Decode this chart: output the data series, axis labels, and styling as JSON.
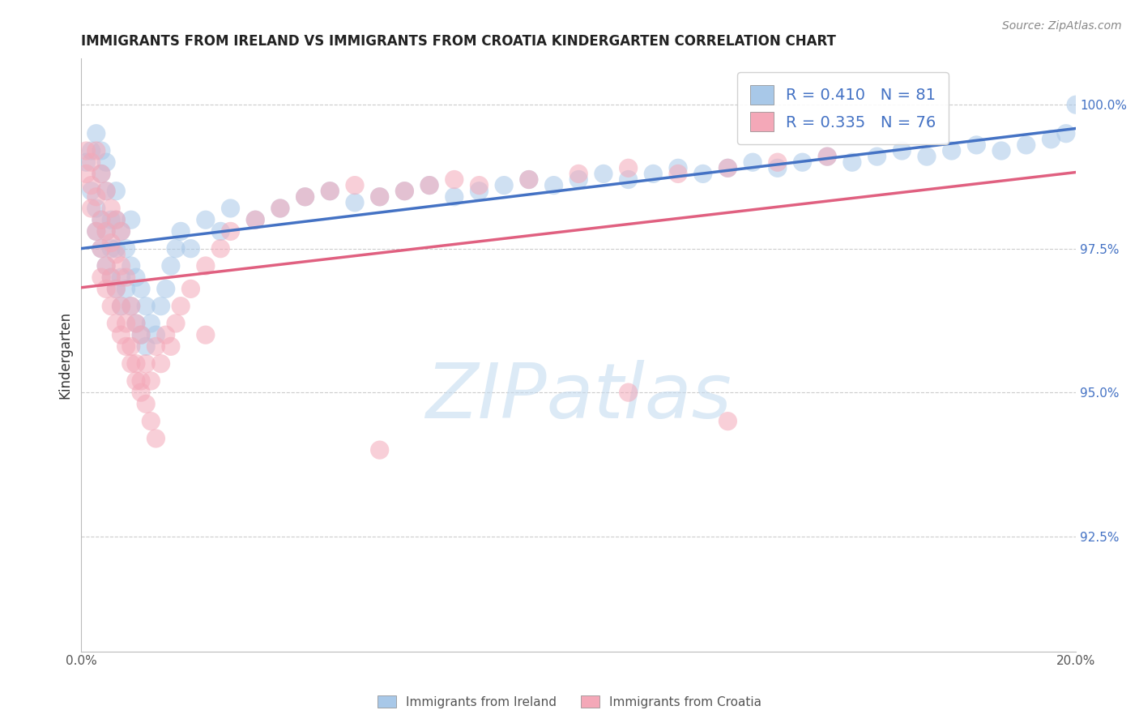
{
  "title": "IMMIGRANTS FROM IRELAND VS IMMIGRANTS FROM CROATIA KINDERGARTEN CORRELATION CHART",
  "source": "Source: ZipAtlas.com",
  "xlabel": "",
  "ylabel": "Kindergarten",
  "xlim": [
    0.0,
    0.2
  ],
  "ylim": [
    0.905,
    1.008
  ],
  "xtick_positions": [
    0.0,
    0.04,
    0.08,
    0.12,
    0.16,
    0.2
  ],
  "xtick_labels": [
    "0.0%",
    "",
    "",
    "",
    "",
    "20.0%"
  ],
  "ytick_positions": [
    0.925,
    0.95,
    0.975,
    1.0
  ],
  "ytick_labels": [
    "92.5%",
    "95.0%",
    "97.5%",
    "100.0%"
  ],
  "ireland_color": "#A8C8E8",
  "croatia_color": "#F4A8B8",
  "ireland_line_color": "#4472C4",
  "croatia_line_color": "#E06080",
  "R_ireland": 0.41,
  "N_ireland": 81,
  "R_croatia": 0.335,
  "N_croatia": 76,
  "watermark": "ZIPatlas",
  "legend_label_ireland": "Immigrants from Ireland",
  "legend_label_croatia": "Immigrants from Croatia",
  "ireland_x": [
    0.001,
    0.002,
    0.002,
    0.003,
    0.003,
    0.003,
    0.004,
    0.004,
    0.004,
    0.004,
    0.005,
    0.005,
    0.005,
    0.005,
    0.006,
    0.006,
    0.006,
    0.007,
    0.007,
    0.007,
    0.007,
    0.008,
    0.008,
    0.008,
    0.009,
    0.009,
    0.01,
    0.01,
    0.01,
    0.011,
    0.011,
    0.012,
    0.012,
    0.013,
    0.013,
    0.014,
    0.015,
    0.016,
    0.017,
    0.018,
    0.019,
    0.02,
    0.022,
    0.025,
    0.028,
    0.03,
    0.035,
    0.04,
    0.045,
    0.05,
    0.055,
    0.06,
    0.065,
    0.07,
    0.075,
    0.08,
    0.085,
    0.09,
    0.095,
    0.1,
    0.105,
    0.11,
    0.115,
    0.12,
    0.125,
    0.13,
    0.135,
    0.14,
    0.145,
    0.15,
    0.155,
    0.16,
    0.165,
    0.17,
    0.175,
    0.18,
    0.185,
    0.19,
    0.195,
    0.198,
    0.2
  ],
  "ireland_y": [
    0.99,
    0.985,
    0.992,
    0.978,
    0.982,
    0.995,
    0.975,
    0.98,
    0.988,
    0.992,
    0.972,
    0.978,
    0.985,
    0.99,
    0.97,
    0.975,
    0.98,
    0.968,
    0.975,
    0.98,
    0.985,
    0.965,
    0.97,
    0.978,
    0.968,
    0.975,
    0.965,
    0.972,
    0.98,
    0.962,
    0.97,
    0.96,
    0.968,
    0.958,
    0.965,
    0.962,
    0.96,
    0.965,
    0.968,
    0.972,
    0.975,
    0.978,
    0.975,
    0.98,
    0.978,
    0.982,
    0.98,
    0.982,
    0.984,
    0.985,
    0.983,
    0.984,
    0.985,
    0.986,
    0.984,
    0.985,
    0.986,
    0.987,
    0.986,
    0.987,
    0.988,
    0.987,
    0.988,
    0.989,
    0.988,
    0.989,
    0.99,
    0.989,
    0.99,
    0.991,
    0.99,
    0.991,
    0.992,
    0.991,
    0.992,
    0.993,
    0.992,
    0.993,
    0.994,
    0.995,
    1.0
  ],
  "croatia_x": [
    0.001,
    0.001,
    0.002,
    0.002,
    0.002,
    0.003,
    0.003,
    0.003,
    0.004,
    0.004,
    0.004,
    0.005,
    0.005,
    0.005,
    0.006,
    0.006,
    0.006,
    0.007,
    0.007,
    0.007,
    0.008,
    0.008,
    0.008,
    0.009,
    0.009,
    0.01,
    0.01,
    0.011,
    0.011,
    0.012,
    0.012,
    0.013,
    0.014,
    0.015,
    0.016,
    0.017,
    0.018,
    0.019,
    0.02,
    0.022,
    0.025,
    0.028,
    0.03,
    0.035,
    0.04,
    0.045,
    0.05,
    0.055,
    0.06,
    0.065,
    0.07,
    0.075,
    0.08,
    0.09,
    0.1,
    0.11,
    0.12,
    0.13,
    0.14,
    0.15,
    0.004,
    0.005,
    0.006,
    0.007,
    0.008,
    0.009,
    0.01,
    0.011,
    0.012,
    0.013,
    0.014,
    0.015,
    0.025,
    0.06,
    0.11,
    0.13
  ],
  "croatia_y": [
    0.988,
    0.992,
    0.982,
    0.986,
    0.99,
    0.978,
    0.984,
    0.992,
    0.975,
    0.98,
    0.988,
    0.972,
    0.978,
    0.985,
    0.97,
    0.976,
    0.982,
    0.968,
    0.974,
    0.98,
    0.965,
    0.972,
    0.978,
    0.962,
    0.97,
    0.958,
    0.965,
    0.955,
    0.962,
    0.952,
    0.96,
    0.955,
    0.952,
    0.958,
    0.955,
    0.96,
    0.958,
    0.962,
    0.965,
    0.968,
    0.972,
    0.975,
    0.978,
    0.98,
    0.982,
    0.984,
    0.985,
    0.986,
    0.984,
    0.985,
    0.986,
    0.987,
    0.986,
    0.987,
    0.988,
    0.989,
    0.988,
    0.989,
    0.99,
    0.991,
    0.97,
    0.968,
    0.965,
    0.962,
    0.96,
    0.958,
    0.955,
    0.952,
    0.95,
    0.948,
    0.945,
    0.942,
    0.96,
    0.94,
    0.95,
    0.945
  ]
}
